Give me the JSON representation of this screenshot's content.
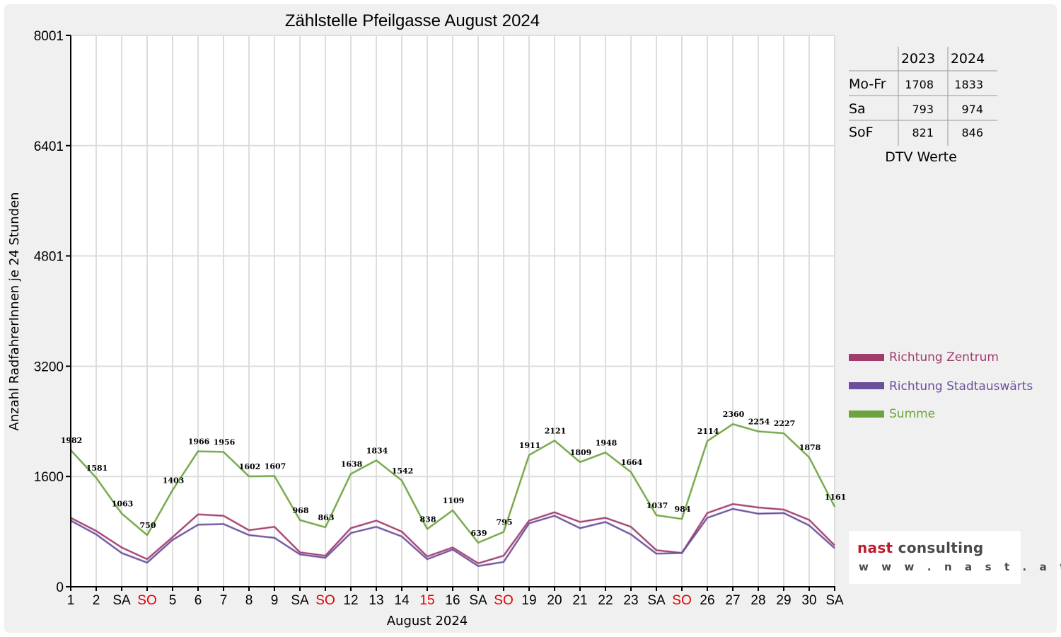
{
  "chart_data": {
    "type": "line",
    "title": "Zählstelle Pfeilgasse August 2024",
    "xlabel": "August 2024",
    "ylabel": "Anzahl RadfahrerInnen je 24 Stunden",
    "ylim": [
      0,
      8001
    ],
    "yticks": [
      "0",
      "1600",
      "3200",
      "4801",
      "6401",
      "8001"
    ],
    "grid": true,
    "legend_position": "right",
    "categories": [
      "1",
      "2",
      "SA",
      "SO",
      "5",
      "6",
      "7",
      "8",
      "9",
      "SA",
      "SO",
      "12",
      "13",
      "14",
      "15",
      "16",
      "SA",
      "SO",
      "19",
      "20",
      "21",
      "22",
      "23",
      "SA",
      "SO",
      "26",
      "27",
      "28",
      "29",
      "30",
      "SA"
    ],
    "holiday_indices": [
      3,
      10,
      14,
      17,
      24
    ],
    "series": [
      {
        "name": "Richtung Zentrum",
        "color": "#a03c6e",
        "values": [
          1000,
          810,
          570,
          400,
          720,
          1050,
          1030,
          820,
          870,
          500,
          450,
          850,
          960,
          800,
          440,
          570,
          340,
          450,
          960,
          1080,
          940,
          1000,
          870,
          530,
          490,
          1070,
          1200,
          1150,
          1120,
          970,
          600
        ]
      },
      {
        "name": "Richtung Stadtauswärts",
        "color": "#6a4f9c",
        "values": [
          960,
          760,
          490,
          350,
          680,
          900,
          910,
          750,
          710,
          470,
          420,
          780,
          870,
          730,
          400,
          540,
          300,
          360,
          920,
          1030,
          850,
          940,
          760,
          480,
          490,
          1000,
          1130,
          1060,
          1070,
          890,
          560
        ]
      },
      {
        "name": "Summe",
        "color": "#6da33e",
        "values": [
          1982,
          1581,
          1063,
          750,
          1403,
          1966,
          1956,
          1602,
          1607,
          968,
          863,
          1638,
          1834,
          1542,
          838,
          1109,
          639,
          795,
          1911,
          2121,
          1809,
          1948,
          1664,
          1037,
          984,
          2114,
          2360,
          2254,
          2227,
          1878,
          1161
        ]
      }
    ],
    "data_labels": [
      "1982",
      "1581",
      "1063",
      "750",
      "1403",
      "1966",
      "1956",
      "1602",
      "1607",
      "968",
      "863",
      "1638",
      "1834",
      "1542",
      "838",
      "1109",
      "639",
      "795",
      "1911",
      "2121",
      "1809",
      "1948",
      "1664",
      "1037",
      "984",
      "2114",
      "2360",
      "2254",
      "2227",
      "1878",
      "1161"
    ]
  },
  "dtv_table": {
    "headers": [
      "",
      "2023",
      "2024"
    ],
    "rows": [
      {
        "label": "Mo-Fr",
        "v2023": "1708",
        "v2024": "1833"
      },
      {
        "label": "Sa",
        "v2023": "793",
        "v2024": "974"
      },
      {
        "label": "SoF",
        "v2023": "821",
        "v2024": "846"
      }
    ],
    "caption": "DTV Werte"
  },
  "logo": {
    "brand": "nast",
    "brand_rest": " consulting",
    "url": "w w w . n a s t . a t"
  },
  "colors": {
    "holiday": "#e00000",
    "grid": "#dddddd",
    "background": "#f0f0f0",
    "plot_background": "#ffffff"
  }
}
